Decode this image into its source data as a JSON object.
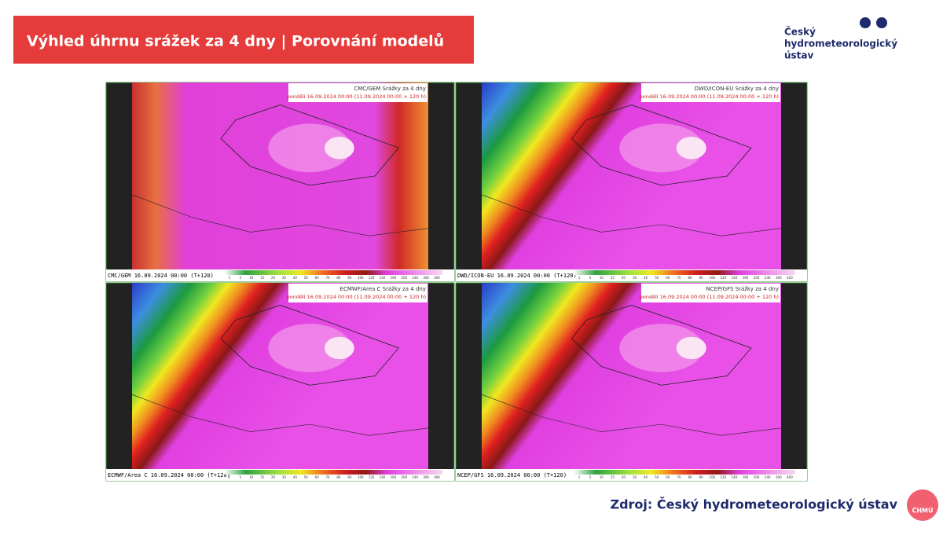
{
  "header": {
    "title": "Výhled úhrnu srážek za 4 dny | Porovnání modelů",
    "logo_lines": [
      "Český",
      "hydrometeorologický",
      "ústav"
    ]
  },
  "panels": [
    {
      "title": "CMC/GEM Srážky za 4 dny",
      "run": "pondělí 16.09.2024 00:00 (11.09.2024 00:00 + 120 h)",
      "label": "CMC/GEM 16.09.2024 00:00 (T+120)"
    },
    {
      "title": "DWD/ICON-EU Srážky za 4 dny",
      "run": "pondělí 16.09.2024 00:00 (11.09.2024 00:00 + 120 h)",
      "label": "DWD/ICON-EU 16.09.2024 00:00 (T+120)"
    },
    {
      "title": "ECMWF/Area C Srážky za 4 dny",
      "run": "pondělí 16.09.2024 00:00 (11.09.2024 00:00 + 120 h)",
      "label": "ECMWF/Area C 16.09.2024 00:00 (T+120)"
    },
    {
      "title": "NCEP/GFS Srážky za 4 dny",
      "run": "pondělí 16.09.2024 00:00 (11.09.2024 00:00 + 120 h)",
      "label": "NCEP/GFS 16.09.2024 00:00 (T+120)"
    }
  ],
  "colorbar_ticks": [
    "1",
    "5",
    "10",
    "15",
    "20",
    "30",
    "40",
    "50",
    "60",
    "70",
    "80",
    "90",
    "100",
    "120",
    "140",
    "160",
    "200",
    "240",
    "300",
    "400"
  ],
  "footer": {
    "source": "Zdroj: Český hydrometeorologický ústav",
    "badge": "ČHMÚ"
  }
}
